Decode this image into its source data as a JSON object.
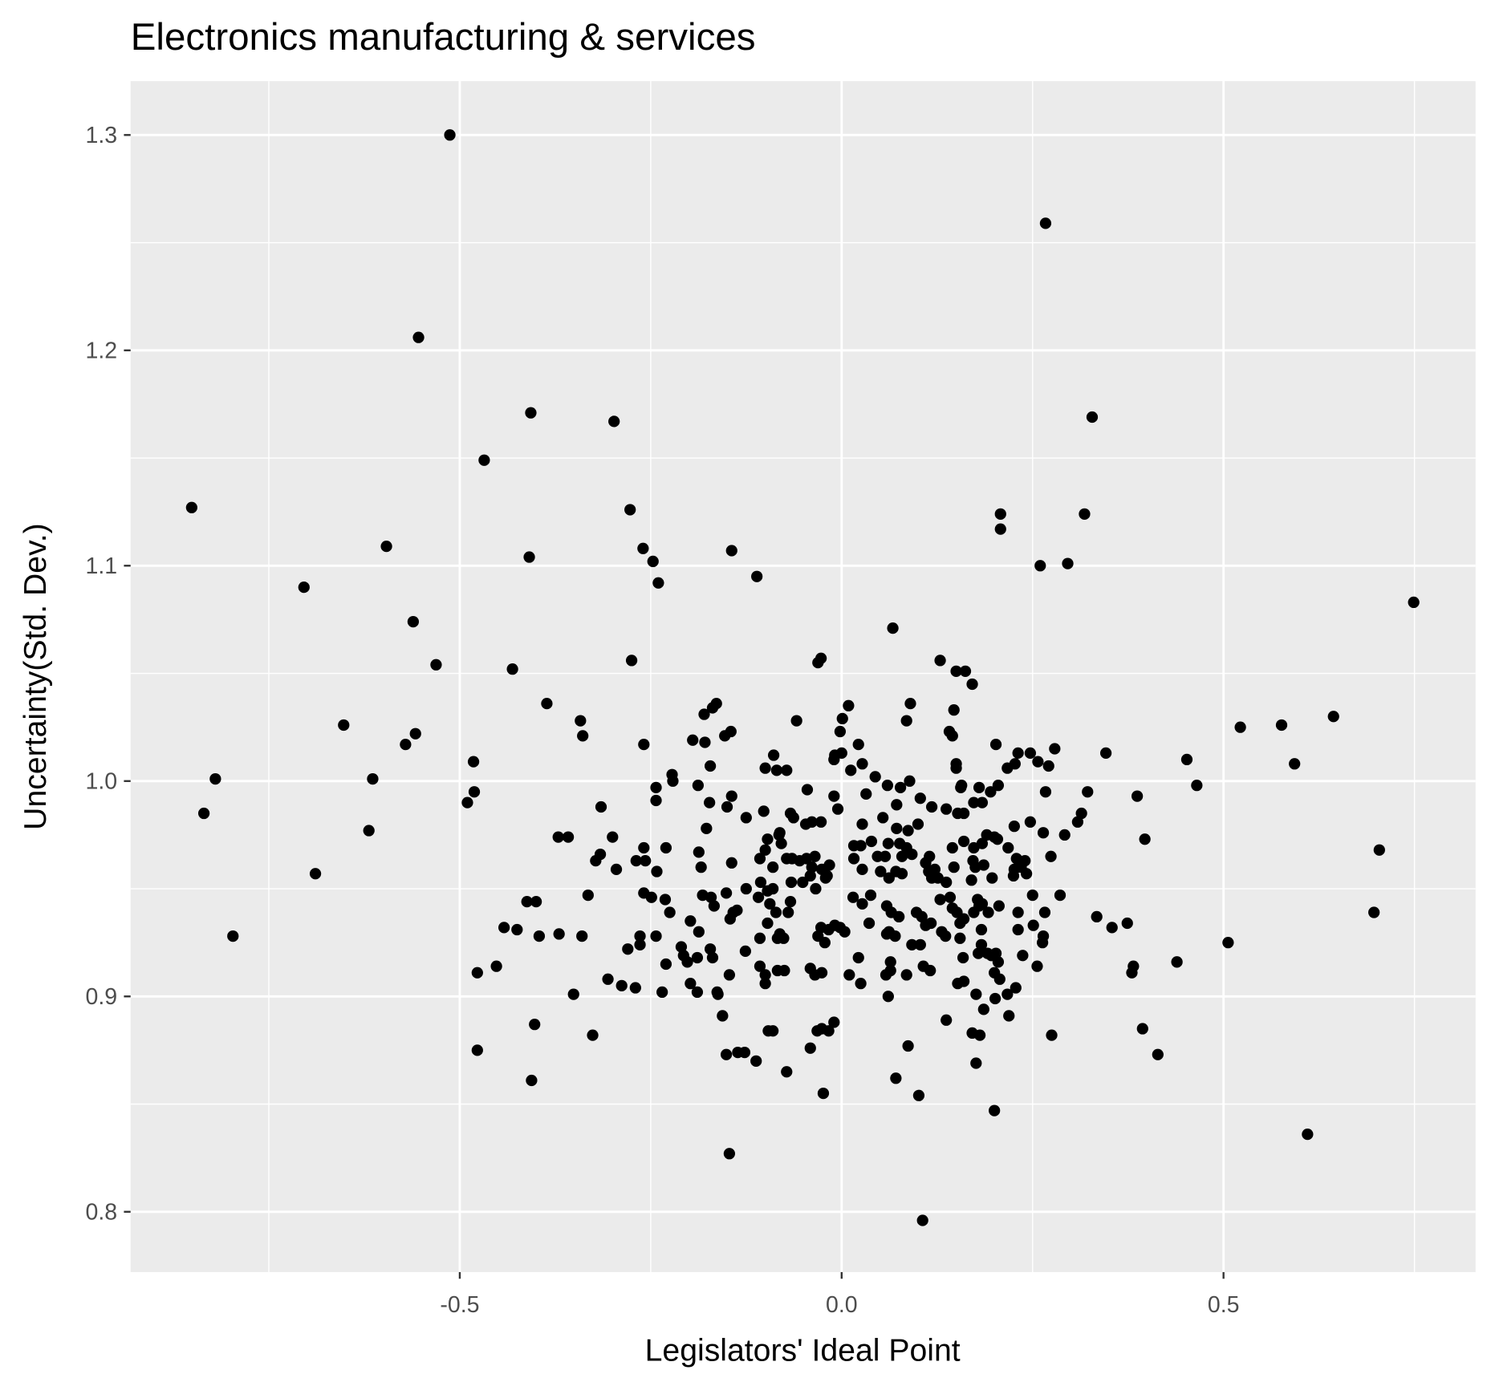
{
  "chart_data": {
    "type": "scatter",
    "title": "Electronics manufacturing & services",
    "xlabel": "Legislators' Ideal Point",
    "ylabel": "Uncertainty(Std. Dev.)",
    "color": "#000000",
    "xlim": [
      -0.931,
      0.83
    ],
    "ylim": [
      0.772,
      1.325
    ],
    "xticks": [
      -0.5,
      {
        "value": 0,
        "label": "0.0"
      },
      0.5
    ],
    "yticks": [
      0.8,
      0.9,
      {
        "value": 1,
        "label": "1.0"
      },
      1.1,
      1.2,
      1.3
    ],
    "grid": true,
    "x": [
      -0.513,
      0.267,
      -0.554,
      -0.407,
      -0.298,
      0.328,
      -0.468,
      -0.851,
      -0.277,
      0.208,
      0.208,
      0.318,
      -0.596,
      -0.26,
      -0.247,
      -0.409,
      -0.144,
      -0.704,
      -0.24,
      -0.111,
      0.26,
      0.296,
      0.749,
      -0.561,
      -0.531,
      -0.431,
      -0.275,
      -0.027,
      -0.031,
      0.067,
      0.129,
      0.15,
      0.162,
      0.171,
      -0.386,
      -0.164,
      -0.169,
      -0.18,
      0.009,
      0.09,
      0.147,
      -0.342,
      -0.059,
      0.001,
      0.085,
      0.522,
      0.576,
      0.644,
      -0.652,
      -0.558,
      -0.571,
      -0.339,
      -0.145,
      -0.153,
      -0.259,
      -0.195,
      -0.179,
      -0.002,
      0.022,
      0.141,
      0.145,
      0.202,
      0.346,
      0.279,
      0.231,
      0.247,
      0.452,
      0.593,
      -0.482,
      -0.172,
      -0.222,
      -0.221,
      -0.089,
      -0.1,
      -0.085,
      -0.072,
      -0.009,
      0,
      -0.01,
      0.027,
      0.012,
      0.044,
      0.06,
      0.089,
      0.077,
      0.15,
      0.15,
      0.157,
      0.156,
      0.18,
      0.195,
      0.205,
      0.217,
      0.227,
      0.257,
      0.271,
      0.267,
      0.322,
      -0.82,
      -0.614,
      -0.835,
      -0.481,
      -0.49,
      -0.315,
      -0.243,
      -0.243,
      -0.188,
      -0.173,
      -0.144,
      -0.15,
      -0.102,
      -0.125,
      -0.045,
      -0.067,
      -0.063,
      -0.047,
      -0.039,
      -0.027,
      -0.01,
      -0.005,
      0.032,
      0.027,
      0.054,
      0.072,
      0.103,
      0.118,
      0.137,
      0.152,
      0.16,
      0.173,
      0.184,
      0.314,
      0.309,
      0.247,
      0.226,
      0.264,
      0.292,
      0.387,
      0.465,
      0.397,
      0.704,
      -0.689,
      -0.619,
      -0.371,
      -0.358,
      -0.3,
      -0.316,
      -0.322,
      -0.295,
      -0.269,
      -0.257,
      -0.259,
      -0.23,
      -0.242,
      -0.177,
      -0.187,
      -0.184,
      -0.144,
      -0.097,
      -0.1,
      -0.082,
      -0.079,
      -0.081,
      -0.09,
      -0.072,
      -0.107,
      -0.065,
      -0.055,
      -0.046,
      -0.035,
      -0.039,
      -0.016,
      -0.026,
      -0.019,
      -0.021,
      0.016,
      0.025,
      0.039,
      0.016,
      0.027,
      0.047,
      0.057,
      0.061,
      0.072,
      0.087,
      0.076,
      0.085,
      0.079,
      0.092,
      0.1,
      0.051,
      0.071,
      0.062,
      0.079,
      0.11,
      0.115,
      0.114,
      0.122,
      0.118,
      0.126,
      0.137,
      0.147,
      0.145,
      0.16,
      0.173,
      0.184,
      0.19,
      0.2,
      0.204,
      0.175,
      0.172,
      0.17,
      0.186,
      0.197,
      0.218,
      0.229,
      0.235,
      0.226,
      0.24,
      0.242,
      0.225,
      0.274,
      0.25,
      0.286,
      0.231,
      0.266,
      0.334,
      0.354,
      0.374,
      0.382,
      0.38,
      0.439,
      0.506,
      0.697,
      0.394,
      0.414,
      0.275,
      0.61,
      -0.797,
      -0.442,
      -0.425,
      -0.412,
      -0.4,
      -0.396,
      -0.37,
      -0.34,
      -0.332,
      -0.452,
      -0.477,
      -0.351,
      -0.306,
      -0.288,
      -0.27,
      -0.28,
      -0.264,
      -0.264,
      -0.243,
      -0.259,
      -0.249,
      -0.231,
      -0.225,
      -0.23,
      -0.235,
      -0.21,
      -0.207,
      -0.202,
      -0.198,
      -0.187,
      -0.189,
      -0.198,
      -0.189,
      -0.172,
      -0.169,
      -0.182,
      -0.171,
      -0.167,
      -0.151,
      -0.142,
      -0.146,
      -0.137,
      -0.147,
      -0.163,
      -0.125,
      -0.106,
      -0.109,
      -0.097,
      -0.09,
      -0.094,
      -0.086,
      -0.067,
      -0.07,
      -0.066,
      -0.051,
      -0.041,
      -0.034,
      -0.097,
      -0.107,
      -0.084,
      -0.076,
      -0.081,
      -0.126,
      -0.107,
      -0.1,
      -0.084,
      -0.075,
      -0.1,
      -0.041,
      -0.035,
      -0.026,
      -0.027,
      -0.017,
      -0.009,
      -0.002,
      -0.022,
      -0.031,
      0.004,
      0.015,
      0.027,
      0.038,
      0.036,
      0.022,
      0.01,
      0.025,
      0.059,
      0.065,
      0.075,
      0.062,
      0.059,
      0.07,
      0.064,
      0.064,
      0.058,
      0.061,
      0.085,
      0.092,
      0.103,
      0.098,
      0.105,
      0.11,
      0.117,
      0.129,
      0.142,
      0.145,
      0.151,
      0.136,
      0.131,
      0.16,
      0.155,
      0.107,
      0.116,
      0.155,
      0.159,
      0.16,
      0.152,
      0.178,
      0.18,
      0.173,
      0.184,
      0.192,
      0.206,
      0.183,
      0.183,
      0.179,
      0.191,
      0.196,
      0.202,
      0.205,
      0.207,
      0.2,
      0.201,
      0.176,
      0.186,
      0.217,
      0.219,
      0.228,
      0.237,
      0.231,
      0.251,
      0.264,
      0.263,
      0.256,
      0.137,
      0.171,
      0.181,
      0.176,
      0.087,
      0.071,
      0.101,
      0.2,
      0.106,
      -0.147,
      -0.024,
      -0.072,
      -0.041,
      -0.112,
      -0.127,
      -0.136,
      -0.151,
      -0.156,
      -0.162,
      -0.096,
      -0.09,
      -0.032,
      -0.026,
      -0.017,
      -0.01,
      -0.406,
      -0.477,
      -0.402,
      -0.326
    ],
    "y": [
      1.3,
      1.259,
      1.206,
      1.171,
      1.167,
      1.169,
      1.149,
      1.127,
      1.126,
      1.124,
      1.117,
      1.124,
      1.109,
      1.108,
      1.102,
      1.104,
      1.107,
      1.09,
      1.092,
      1.095,
      1.1,
      1.101,
      1.083,
      1.074,
      1.054,
      1.052,
      1.056,
      1.057,
      1.055,
      1.071,
      1.056,
      1.051,
      1.051,
      1.045,
      1.036,
      1.036,
      1.034,
      1.031,
      1.035,
      1.036,
      1.033,
      1.028,
      1.028,
      1.029,
      1.028,
      1.025,
      1.026,
      1.03,
      1.026,
      1.022,
      1.017,
      1.021,
      1.023,
      1.021,
      1.017,
      1.019,
      1.018,
      1.023,
      1.017,
      1.023,
      1.021,
      1.017,
      1.013,
      1.015,
      1.013,
      1.013,
      1.01,
      1.008,
      1.009,
      1.007,
      1.003,
      1,
      1.012,
      1.006,
      1.005,
      1.005,
      1.012,
      1.013,
      1.01,
      1.008,
      1.005,
      1.002,
      0.998,
      1,
      0.997,
      1.008,
      1.006,
      0.998,
      0.997,
      0.997,
      0.995,
      0.998,
      1.006,
      1.008,
      1.009,
      1.007,
      0.995,
      0.995,
      1.001,
      1.001,
      0.985,
      0.995,
      0.99,
      0.988,
      0.997,
      0.991,
      0.998,
      0.99,
      0.993,
      0.988,
      0.986,
      0.983,
      0.996,
      0.985,
      0.983,
      0.98,
      0.981,
      0.981,
      0.993,
      0.987,
      0.994,
      0.98,
      0.983,
      0.989,
      0.992,
      0.988,
      0.987,
      0.985,
      0.985,
      0.99,
      0.99,
      0.985,
      0.981,
      0.981,
      0.979,
      0.976,
      0.975,
      0.993,
      0.998,
      0.973,
      0.968,
      0.957,
      0.977,
      0.974,
      0.974,
      0.974,
      0.966,
      0.963,
      0.959,
      0.963,
      0.963,
      0.969,
      0.969,
      0.958,
      0.978,
      0.967,
      0.96,
      0.962,
      0.973,
      0.968,
      0.975,
      0.971,
      0.976,
      0.96,
      0.964,
      0.964,
      0.964,
      0.963,
      0.964,
      0.965,
      0.96,
      0.961,
      0.959,
      0.956,
      0.955,
      0.97,
      0.97,
      0.972,
      0.964,
      0.959,
      0.965,
      0.965,
      0.971,
      0.978,
      0.977,
      0.971,
      0.969,
      0.965,
      0.966,
      0.98,
      0.958,
      0.958,
      0.955,
      0.957,
      0.962,
      0.965,
      0.958,
      0.959,
      0.955,
      0.955,
      0.953,
      0.96,
      0.969,
      0.972,
      0.969,
      0.971,
      0.975,
      0.974,
      0.973,
      0.96,
      0.963,
      0.954,
      0.961,
      0.955,
      0.969,
      0.964,
      0.96,
      0.959,
      0.963,
      0.957,
      0.956,
      0.965,
      0.947,
      0.947,
      0.939,
      0.939,
      0.937,
      0.932,
      0.934,
      0.914,
      0.911,
      0.916,
      0.925,
      0.939,
      0.885,
      0.873,
      0.882,
      0.836,
      0.928,
      0.932,
      0.931,
      0.944,
      0.944,
      0.928,
      0.929,
      0.928,
      0.947,
      0.914,
      0.911,
      0.901,
      0.908,
      0.905,
      0.904,
      0.922,
      0.928,
      0.924,
      0.928,
      0.948,
      0.946,
      0.945,
      0.939,
      0.915,
      0.902,
      0.923,
      0.919,
      0.916,
      0.935,
      0.93,
      0.918,
      0.906,
      0.902,
      0.922,
      0.918,
      0.947,
      0.946,
      0.942,
      0.948,
      0.939,
      0.936,
      0.94,
      0.91,
      0.902,
      0.95,
      0.953,
      0.946,
      0.949,
      0.95,
      0.943,
      0.939,
      0.944,
      0.939,
      0.953,
      0.953,
      0.956,
      0.95,
      0.934,
      0.927,
      0.927,
      0.927,
      0.929,
      0.921,
      0.914,
      0.91,
      0.912,
      0.912,
      0.906,
      0.913,
      0.91,
      0.911,
      0.932,
      0.931,
      0.933,
      0.932,
      0.925,
      0.928,
      0.93,
      0.946,
      0.943,
      0.947,
      0.934,
      0.918,
      0.91,
      0.906,
      0.942,
      0.939,
      0.937,
      0.93,
      0.929,
      0.928,
      0.916,
      0.912,
      0.91,
      0.9,
      0.91,
      0.924,
      0.924,
      0.939,
      0.937,
      0.933,
      0.934,
      0.945,
      0.946,
      0.941,
      0.939,
      0.928,
      0.93,
      0.936,
      0.934,
      0.914,
      0.912,
      0.927,
      0.918,
      0.907,
      0.906,
      0.945,
      0.942,
      0.939,
      0.943,
      0.939,
      0.942,
      0.931,
      0.924,
      0.92,
      0.92,
      0.919,
      0.92,
      0.916,
      0.908,
      0.911,
      0.899,
      0.901,
      0.894,
      0.901,
      0.891,
      0.904,
      0.919,
      0.931,
      0.933,
      0.928,
      0.925,
      0.914,
      0.889,
      0.883,
      0.882,
      0.869,
      0.877,
      0.862,
      0.854,
      0.847,
      0.796,
      0.827,
      0.855,
      0.865,
      0.876,
      0.87,
      0.874,
      0.874,
      0.873,
      0.891,
      0.901,
      0.884,
      0.884,
      0.884,
      0.885,
      0.884,
      0.888,
      0.861,
      0.875,
      0.887,
      0.882
    ]
  }
}
